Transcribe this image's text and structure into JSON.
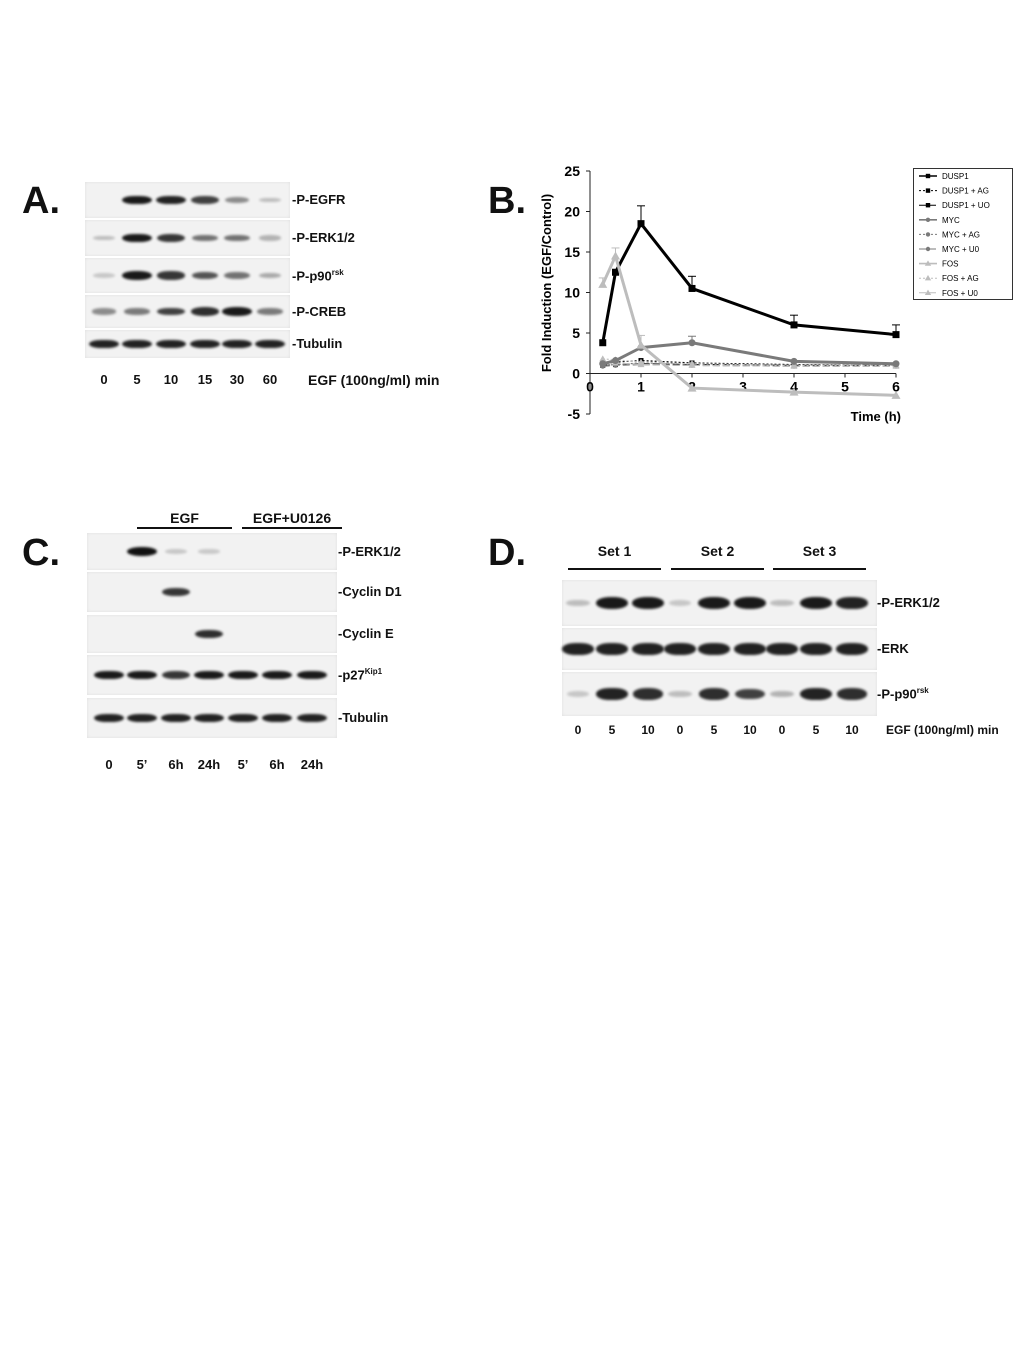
{
  "panels": {
    "a": {
      "letter": "A.",
      "rows": [
        {
          "label": "-P-EGFR",
          "sup": "",
          "intensity": [
            0,
            0.95,
            0.9,
            0.75,
            0.35,
            0.1
          ]
        },
        {
          "label": "-P-ERK1/2",
          "sup": "",
          "intensity": [
            0.1,
            0.95,
            0.8,
            0.5,
            0.5,
            0.15
          ]
        },
        {
          "label": "-P-p90",
          "sup": "rsk",
          "intensity": [
            0.05,
            0.95,
            0.8,
            0.65,
            0.5,
            0.2
          ]
        },
        {
          "label": "-P-CREB",
          "sup": "",
          "intensity": [
            0.35,
            0.45,
            0.75,
            0.85,
            0.95,
            0.45
          ]
        },
        {
          "label": "-Tubulin",
          "sup": "",
          "intensity": [
            0.9,
            0.9,
            0.9,
            0.9,
            0.9,
            0.9
          ]
        }
      ],
      "lanes": [
        "0",
        "5",
        "10",
        "15",
        "30",
        "60"
      ],
      "axis_label": "EGF (100ng/ml) min"
    },
    "b": {
      "letter": "B.",
      "ylabel": "Fold Induction  (EGF/Control)",
      "xlabel": "Time (h)"
    },
    "c": {
      "letter": "C.",
      "group_labels": [
        "EGF",
        "EGF+U0126"
      ],
      "rows": [
        {
          "label": "-P-ERK1/2",
          "sup": "",
          "intensity": [
            0,
            1,
            0.05,
            0.03,
            0,
            0,
            0
          ]
        },
        {
          "label": "-Cyclin D1",
          "sup": "",
          "intensity": [
            0,
            0,
            0.8,
            0,
            0,
            0,
            0
          ]
        },
        {
          "label": "-Cyclin E",
          "sup": "",
          "intensity": [
            0,
            0,
            0,
            0.85,
            0,
            0,
            0
          ]
        },
        {
          "label": "-p27",
          "sup": "Kip1",
          "intensity": [
            0.95,
            0.95,
            0.8,
            0.95,
            0.95,
            0.95,
            0.95
          ]
        },
        {
          "label": "-Tubulin",
          "sup": "",
          "intensity": [
            0.9,
            0.9,
            0.9,
            0.9,
            0.9,
            0.9,
            0.9
          ]
        }
      ],
      "lanes": [
        "0",
        "5’",
        "6h",
        "24h",
        "5’",
        "6h",
        "24h"
      ]
    },
    "d": {
      "letter": "D.",
      "set_labels": [
        "Set 1",
        "Set 2",
        "Set 3"
      ],
      "rows": [
        {
          "label": "-P-ERK1/2",
          "sup": "",
          "intensity": [
            0.1,
            0.95,
            0.95,
            0.05,
            0.95,
            0.95,
            0.1,
            0.95,
            0.9
          ]
        },
        {
          "label": "-ERK",
          "sup": "",
          "intensity": [
            0.9,
            0.9,
            0.9,
            0.9,
            0.9,
            0.9,
            0.9,
            0.9,
            0.9
          ]
        },
        {
          "label": "-P-p90",
          "sup": "rsk",
          "intensity": [
            0.05,
            0.9,
            0.85,
            0.1,
            0.85,
            0.75,
            0.15,
            0.9,
            0.85
          ]
        }
      ],
      "lanes": [
        "0",
        "5",
        "10",
        "0",
        "5",
        "10",
        "0",
        "5",
        "10"
      ],
      "axis_label": "EGF (100ng/ml) min"
    }
  },
  "chart_data": {
    "type": "line",
    "xlabel": "Time (h)",
    "ylabel": "Fold Induction  (EGF/Control)",
    "xlim": [
      0,
      6
    ],
    "ylim": [
      -5,
      25
    ],
    "xticks": [
      0,
      1,
      2,
      3,
      4,
      5,
      6
    ],
    "yticks": [
      -5,
      0,
      5,
      10,
      15,
      20,
      25
    ],
    "legend_position": "top-right",
    "series": [
      {
        "name": "DUSP1",
        "color": "#000000",
        "dash": "",
        "marker": "square",
        "width": 3,
        "x": [
          0.25,
          0.5,
          1,
          2,
          4,
          6
        ],
        "y": [
          3.8,
          12.5,
          18.5,
          10.5,
          6,
          4.8
        ],
        "err": [
          0,
          0,
          2.2,
          1.5,
          1.2,
          1.2
        ]
      },
      {
        "name": "DUSP1 + AG",
        "color": "#000000",
        "dash": "2,2",
        "marker": "square",
        "width": 1.2,
        "x": [
          0.25,
          0.5,
          1,
          2,
          4,
          6
        ],
        "y": [
          1.2,
          1.4,
          1.6,
          1.3,
          1.1,
          1.0
        ],
        "err": [
          0,
          0,
          0,
          0,
          0,
          0
        ]
      },
      {
        "name": "DUSP1 + UO",
        "color": "#000000",
        "dash": "7,3",
        "marker": "square",
        "width": 1.2,
        "x": [
          0.25,
          0.5,
          1,
          2,
          4,
          6
        ],
        "y": [
          1.0,
          1.1,
          1.2,
          1.1,
          1.0,
          1.0
        ],
        "err": [
          0,
          0,
          0,
          0,
          0,
          0
        ]
      },
      {
        "name": "MYC",
        "color": "#7a7a7a",
        "dash": "",
        "marker": "circle",
        "width": 3,
        "x": [
          0.25,
          0.5,
          1,
          2,
          4,
          6
        ],
        "y": [
          1.2,
          1.6,
          3.2,
          3.8,
          1.5,
          1.2
        ],
        "err": [
          0,
          0,
          0,
          0.8,
          0,
          0
        ]
      },
      {
        "name": "MYC + AG",
        "color": "#7a7a7a",
        "dash": "2,2",
        "marker": "circle",
        "width": 1.2,
        "x": [
          0.25,
          0.5,
          1,
          2,
          4,
          6
        ],
        "y": [
          1.0,
          1.1,
          1.3,
          1.2,
          1.0,
          1.0
        ],
        "err": [
          0,
          0,
          0,
          0,
          0,
          0
        ]
      },
      {
        "name": "MYC + U0",
        "color": "#7a7a7a",
        "dash": "7,3",
        "marker": "circle",
        "width": 1.2,
        "x": [
          0.25,
          0.5,
          1,
          2,
          4,
          6
        ],
        "y": [
          0.9,
          1.0,
          1.1,
          1.0,
          0.9,
          0.9
        ],
        "err": [
          0,
          0,
          0,
          0,
          0,
          0
        ]
      },
      {
        "name": "FOS",
        "color": "#bdbdbd",
        "dash": "",
        "marker": "triangle",
        "width": 3,
        "x": [
          0.25,
          0.5,
          1,
          2,
          4,
          6
        ],
        "y": [
          11,
          14.5,
          3.5,
          -1.8,
          -2.3,
          -2.7
        ],
        "err": [
          0.8,
          1.0,
          1.2,
          0,
          0,
          0
        ]
      },
      {
        "name": "FOS + AG",
        "color": "#bdbdbd",
        "dash": "2,2",
        "marker": "triangle",
        "width": 1.2,
        "x": [
          0.25,
          0.5,
          1,
          2,
          4,
          6
        ],
        "y": [
          1.8,
          1.7,
          1.4,
          1.2,
          1.0,
          1.0
        ],
        "err": [
          0,
          0,
          0,
          0,
          0,
          0
        ]
      },
      {
        "name": "FOS + U0",
        "color": "#bdbdbd",
        "dash": "7,3",
        "marker": "triangle",
        "width": 1.2,
        "x": [
          0.25,
          0.5,
          1,
          2,
          4,
          6
        ],
        "y": [
          1.4,
          1.3,
          1.1,
          1.0,
          0.9,
          0.9
        ],
        "err": [
          0,
          0,
          0,
          0,
          0,
          0
        ]
      }
    ]
  }
}
